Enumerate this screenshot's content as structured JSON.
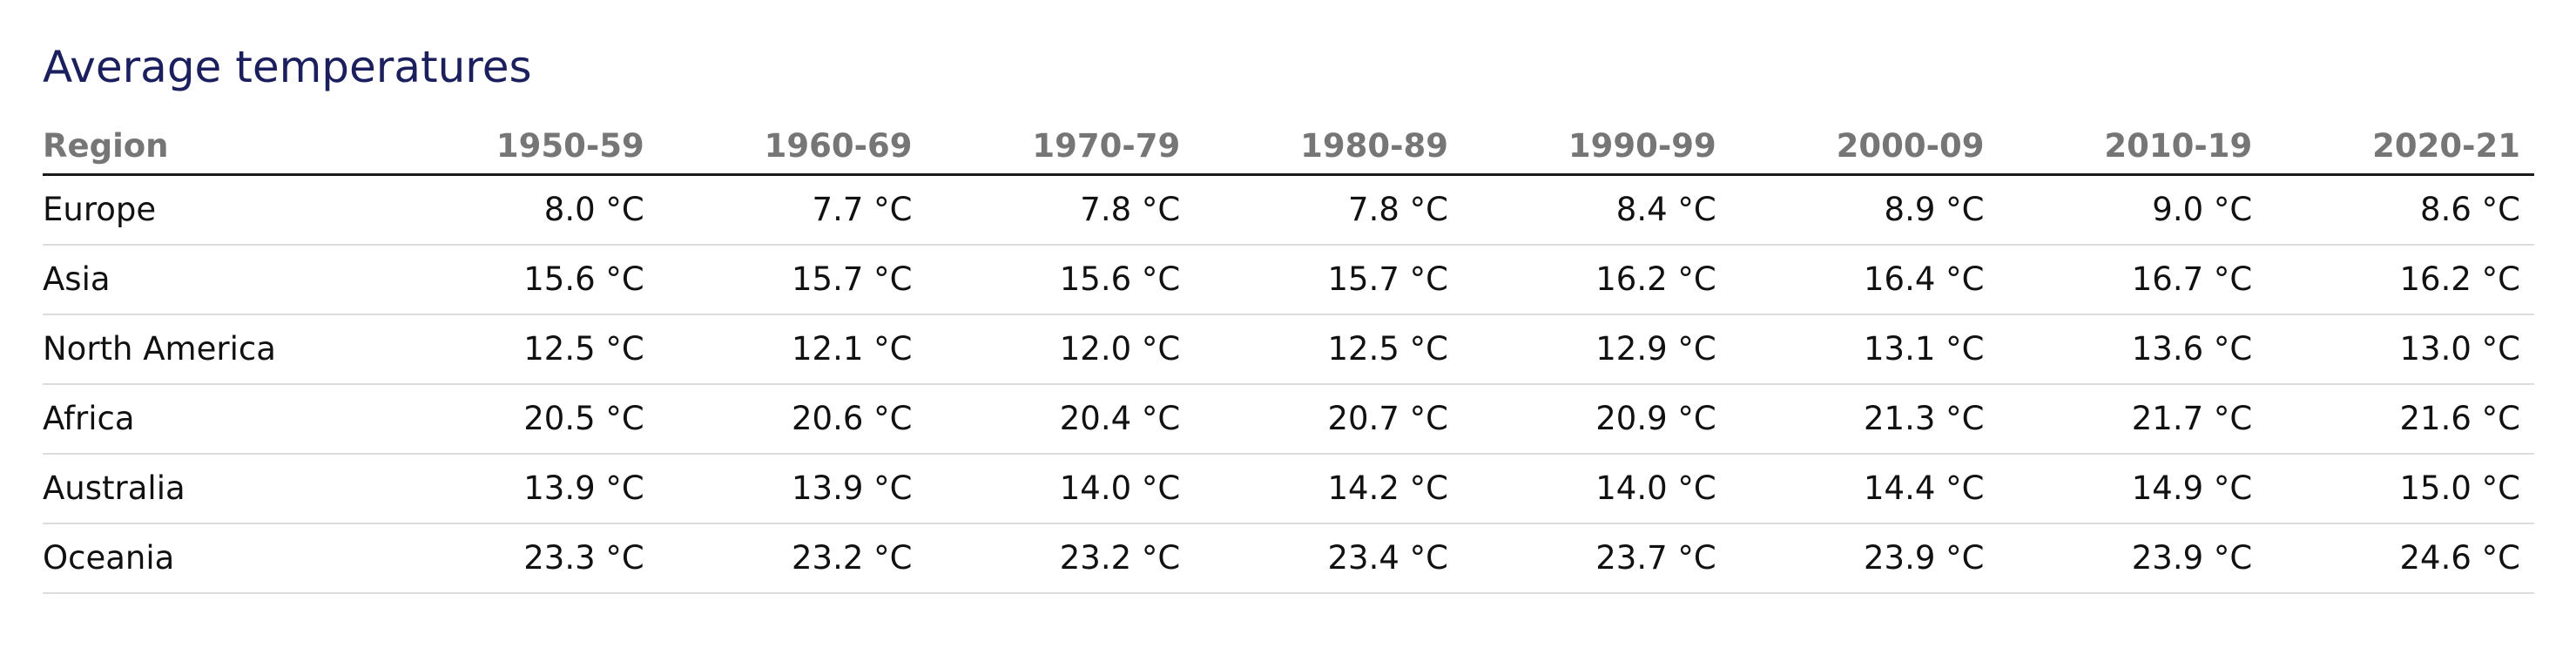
{
  "chart_data": {
    "type": "table",
    "title": "Average temperatures",
    "columns": [
      "Region",
      "1950-59",
      "1960-69",
      "1970-79",
      "1980-89",
      "1990-99",
      "2000-09",
      "2010-19",
      "2020-21"
    ],
    "rows": [
      [
        "Europe",
        "8.0 °C",
        "7.7 °C",
        "7.8 °C",
        "7.8 °C",
        "8.4 °C",
        "8.9 °C",
        "9.0 °C",
        "8.6 °C"
      ],
      [
        "Asia",
        "15.6 °C",
        "15.7 °C",
        "15.6 °C",
        "15.7 °C",
        "16.2 °C",
        "16.4 °C",
        "16.7 °C",
        "16.2 °C"
      ],
      [
        "North America",
        "12.5 °C",
        "12.1 °C",
        "12.0 °C",
        "12.5 °C",
        "12.9 °C",
        "13.1 °C",
        "13.6 °C",
        "13.0 °C"
      ],
      [
        "Africa",
        "20.5 °C",
        "20.6 °C",
        "20.4 °C",
        "20.7 °C",
        "20.9 °C",
        "21.3 °C",
        "21.7 °C",
        "21.6 °C"
      ],
      [
        "Australia",
        "13.9 °C",
        "13.9 °C",
        "14.0 °C",
        "14.2 °C",
        "14.0 °C",
        "14.4 °C",
        "14.9 °C",
        "15.0 °C"
      ],
      [
        "Oceania",
        "23.3 °C",
        "23.2 °C",
        "23.2 °C",
        "23.4 °C",
        "23.7 °C",
        "23.9 °C",
        "23.9 °C",
        "24.6 °C"
      ]
    ]
  },
  "colors": {
    "title": "#1c1f5e",
    "header_text": "#767676",
    "body_text": "#111111",
    "header_rule": "#1a1a1a",
    "row_rule": "#dcdcdc"
  }
}
